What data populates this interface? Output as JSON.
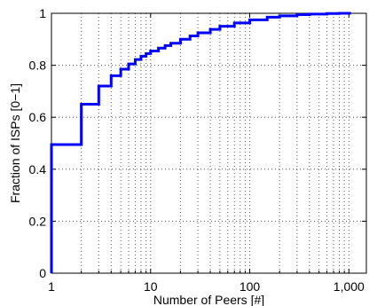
{
  "chart_data": {
    "type": "line",
    "title": "",
    "xlabel": "Number of Peers [#]",
    "ylabel": "Fraction of ISPs [0−1]",
    "x_scale": "log",
    "xlim": [
      1,
      1500
    ],
    "ylim": [
      0,
      1
    ],
    "grid": true,
    "legend": "none",
    "xticks": [
      {
        "value": 1,
        "label": "1"
      },
      {
        "value": 10,
        "label": "10"
      },
      {
        "value": 100,
        "label": "100"
      },
      {
        "value": 1000,
        "label": "1,000"
      }
    ],
    "yticks": [
      {
        "value": 0,
        "label": "0"
      },
      {
        "value": 0.2,
        "label": "0.2"
      },
      {
        "value": 0.4,
        "label": "0.4"
      },
      {
        "value": 0.6,
        "label": "0.6"
      },
      {
        "value": 0.8,
        "label": "0.8"
      },
      {
        "value": 1,
        "label": "1"
      }
    ],
    "series": [
      {
        "color": "#0000ff",
        "step": true,
        "x": [
          1,
          1,
          2,
          3,
          4,
          5,
          6,
          7,
          8,
          9,
          10,
          12,
          14,
          16,
          20,
          25,
          30,
          40,
          50,
          70,
          100,
          150,
          200,
          300,
          400,
          600,
          800,
          1050
        ],
        "y": [
          0,
          0.495,
          0.65,
          0.72,
          0.76,
          0.785,
          0.805,
          0.822,
          0.835,
          0.845,
          0.855,
          0.866,
          0.876,
          0.885,
          0.9,
          0.913,
          0.925,
          0.938,
          0.95,
          0.963,
          0.975,
          0.985,
          0.99,
          0.995,
          0.997,
          0.999,
          1.0,
          1.0
        ]
      }
    ]
  }
}
